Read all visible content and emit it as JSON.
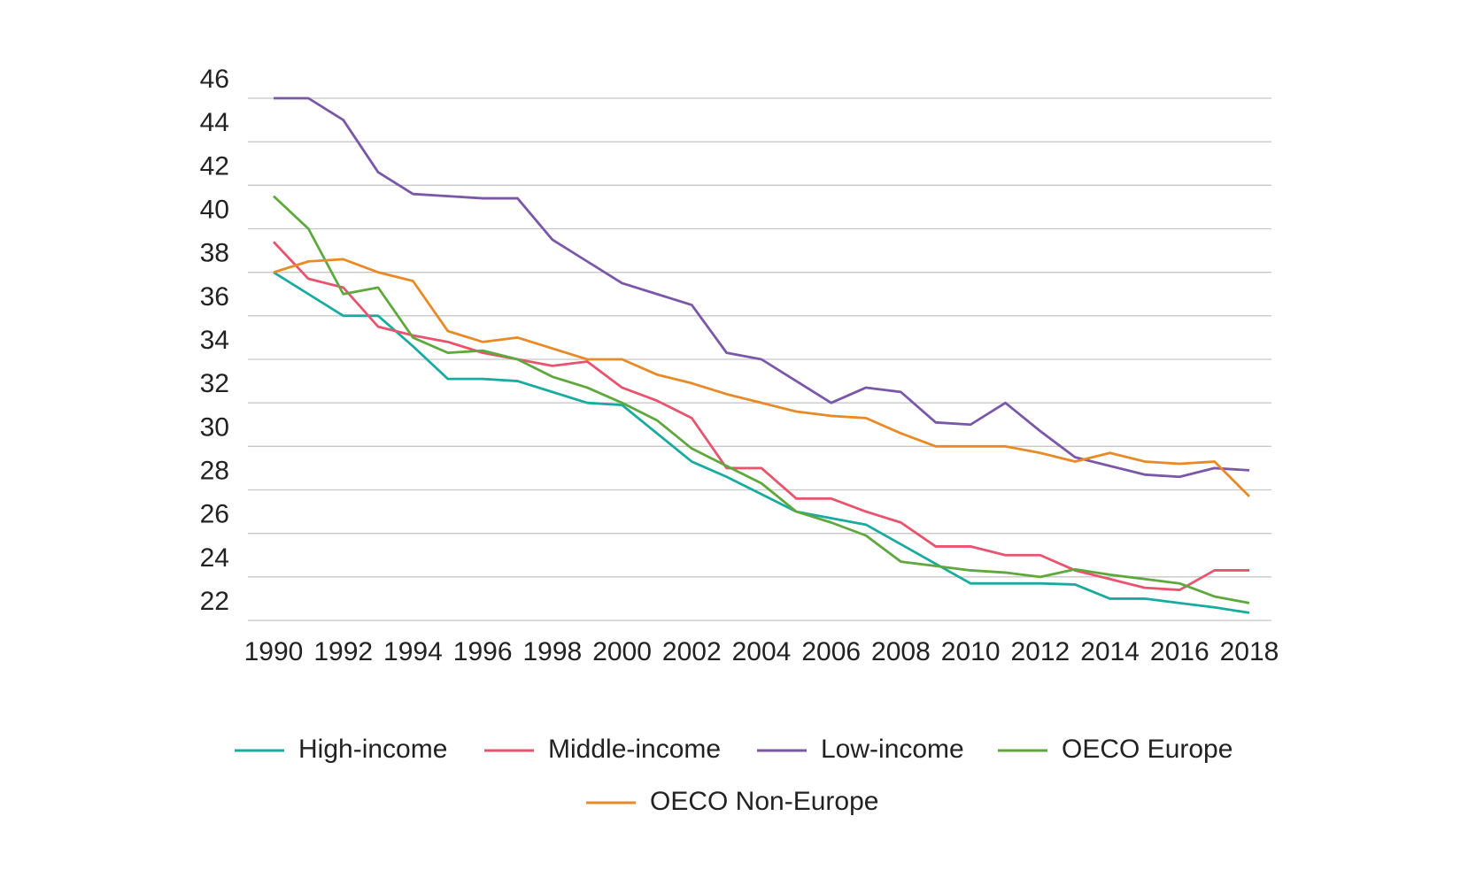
{
  "chart_data": {
    "type": "line",
    "x": [
      1990,
      1991,
      1992,
      1993,
      1994,
      1995,
      1996,
      1997,
      1998,
      1999,
      2000,
      2001,
      2002,
      2003,
      2004,
      2005,
      2006,
      2007,
      2008,
      2009,
      2010,
      2011,
      2012,
      2013,
      2014,
      2015,
      2016,
      2017,
      2018
    ],
    "series": [
      {
        "name": "High-income",
        "color": "#1aaba0",
        "values": [
          38.0,
          37.0,
          36.0,
          36.0,
          34.6,
          33.1,
          33.1,
          33.0,
          32.5,
          32.0,
          31.9,
          30.6,
          29.3,
          28.6,
          27.8,
          27.0,
          26.7,
          26.4,
          25.5,
          24.6,
          23.7,
          23.7,
          23.7,
          23.65,
          23.0,
          23.0,
          22.8,
          22.6,
          22.35
        ]
      },
      {
        "name": "Middle-income",
        "color": "#e8546e",
        "values": [
          39.4,
          37.7,
          37.3,
          35.5,
          35.1,
          34.8,
          34.3,
          34.0,
          33.7,
          33.9,
          32.7,
          32.1,
          31.3,
          29.0,
          29.0,
          27.6,
          27.6,
          27.0,
          26.5,
          25.4,
          25.4,
          25.0,
          25.0,
          24.3,
          23.9,
          23.5,
          23.4,
          24.3,
          24.3
        ]
      },
      {
        "name": "Low-income",
        "color": "#7b57a8",
        "values": [
          46.0,
          46.0,
          45.0,
          42.6,
          41.6,
          41.5,
          41.4,
          41.4,
          39.5,
          38.5,
          37.5,
          37.0,
          36.5,
          34.3,
          34.0,
          33.0,
          32.0,
          32.7,
          32.5,
          31.1,
          31.0,
          32.0,
          30.7,
          29.5,
          29.1,
          28.7,
          28.6,
          29.0,
          28.9
        ]
      },
      {
        "name": "OECO Europe",
        "color": "#5ea83e",
        "values": [
          41.5,
          40.0,
          37.0,
          37.3,
          35.0,
          34.3,
          34.4,
          34.0,
          33.2,
          32.7,
          32.0,
          31.2,
          29.9,
          29.1,
          28.3,
          27.0,
          26.5,
          25.9,
          24.7,
          24.5,
          24.3,
          24.2,
          24.0,
          24.35,
          24.1,
          23.9,
          23.7,
          23.1,
          22.8
        ]
      },
      {
        "name": "OECO Non-Europe",
        "color": "#e88a25",
        "values": [
          38.0,
          38.5,
          38.6,
          38.0,
          37.6,
          35.3,
          34.8,
          35.0,
          34.5,
          34.0,
          34.0,
          33.3,
          32.9,
          32.4,
          32.0,
          31.6,
          31.4,
          31.3,
          30.6,
          30.0,
          30.0,
          30.0,
          29.7,
          29.3,
          29.7,
          29.3,
          29.2,
          29.3,
          27.7
        ]
      }
    ],
    "xlim": [
      1990,
      2018
    ],
    "xticks": [
      1990,
      1992,
      1994,
      1996,
      1998,
      2000,
      2002,
      2004,
      2006,
      2008,
      2010,
      2012,
      2014,
      2016,
      2018
    ],
    "ylim": [
      22,
      46
    ],
    "yticks": [
      22,
      24,
      26,
      28,
      30,
      32,
      34,
      36,
      38,
      40,
      42,
      44,
      46
    ],
    "grid": true
  }
}
